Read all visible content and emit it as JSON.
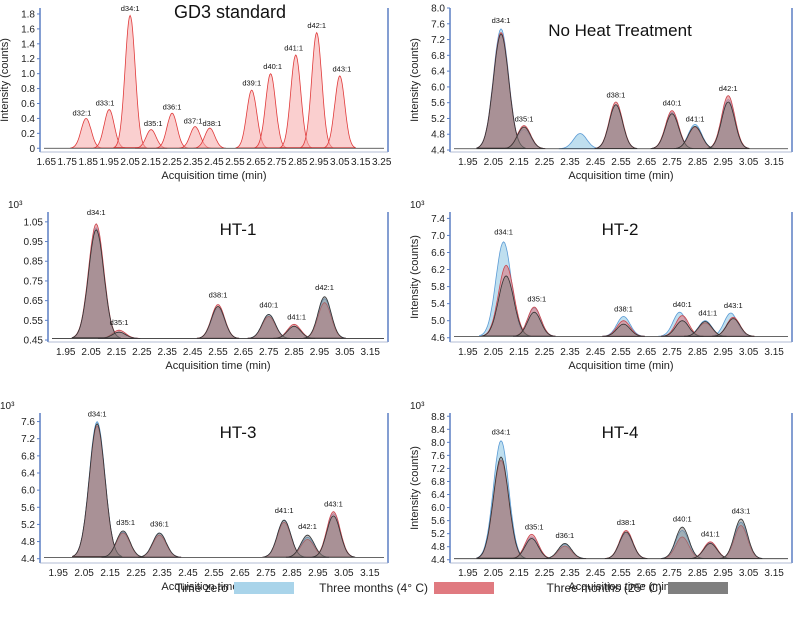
{
  "colors": {
    "time_zero": "#a9d4ea",
    "time_zero_line": "#5b9bd5",
    "four_c": "#e07a80",
    "four_c_line": "#c9474f",
    "twentyfive_c": "#7f7f7f",
    "twentyfive_c_line": "#333333",
    "gd3_fill": "#f6a7a7",
    "gd3_line": "#e03a3a",
    "axis": "#5b7fc4"
  },
  "legend": {
    "time_zero": "Time zero",
    "four_c": "Three months (4° C)",
    "twentyfive_c": "Three months (25° C)"
  },
  "chart_data": [
    {
      "id": "gd3",
      "type": "area",
      "title": "GD3 standard",
      "xlabel": "Acquisition time (min)",
      "ylabel": "Intensity (counts)",
      "exponent": "",
      "xlim": [
        1.62,
        3.28
      ],
      "ylim": [
        -0.05,
        1.88
      ],
      "xticks": [
        "1.65",
        "1.75",
        "1.85",
        "1.95",
        "2.05",
        "2.15",
        "2.25",
        "2.35",
        "2.45",
        "2.55",
        "2.65",
        "2.75",
        "2.85",
        "2.95",
        "3.05",
        "3.15",
        "3.25"
      ],
      "yticks": [
        "0",
        "0.2",
        "0.4",
        "0.6",
        "0.8",
        "1.0",
        "1.2",
        "1.4",
        "1.6",
        "1.8"
      ],
      "series": [
        {
          "name": "GD3 standard",
          "color_key": "gd3",
          "peaks": [
            [
              1.84,
              0.4
            ],
            [
              1.95,
              0.52
            ],
            [
              2.05,
              1.78
            ],
            [
              2.15,
              0.25
            ],
            [
              2.25,
              0.47
            ],
            [
              2.36,
              0.29
            ],
            [
              2.43,
              0.27
            ],
            [
              2.63,
              0.78
            ],
            [
              2.72,
              1.0
            ],
            [
              2.84,
              1.25
            ],
            [
              2.94,
              1.55
            ],
            [
              3.05,
              0.97
            ]
          ]
        }
      ],
      "labels": [
        [
          "d32:1",
          1.82,
          0.4
        ],
        [
          "d33:1",
          1.93,
          0.53
        ],
        [
          "d34:1",
          2.05,
          1.8
        ],
        [
          "d35:1",
          2.16,
          0.26
        ],
        [
          "d36:1",
          2.25,
          0.48
        ],
        [
          "d37:1",
          2.35,
          0.29
        ],
        [
          "d38:1",
          2.44,
          0.26
        ],
        [
          "d39:1",
          2.63,
          0.8
        ],
        [
          "d40:1",
          2.73,
          1.02
        ],
        [
          "d41:1",
          2.83,
          1.27
        ],
        [
          "d42:1",
          2.94,
          1.57
        ],
        [
          "d43:1",
          3.06,
          0.99
        ]
      ]
    },
    {
      "id": "nht",
      "type": "area",
      "title": "No Heat Treatment",
      "xlabel": "Acquisition time (min)",
      "ylabel": "Intensity (counts)",
      "exponent": "",
      "xlim": [
        1.88,
        3.22
      ],
      "ylim": [
        4.35,
        8.0
      ],
      "xticks": [
        "1.95",
        "2.05",
        "2.15",
        "2.25",
        "2.35",
        "2.45",
        "2.55",
        "2.65",
        "2.75",
        "2.85",
        "2.95",
        "3.05",
        "3.15"
      ],
      "yticks": [
        "4.4",
        "4.8",
        "5.2",
        "5.6",
        "6.0",
        "6.4",
        "6.8",
        "7.2",
        "7.6",
        "8.0"
      ],
      "series": [
        {
          "name": "Time zero",
          "color_key": "time_zero",
          "peaks": [
            [
              2.08,
              7.47
            ],
            [
              2.17,
              4.92
            ],
            [
              2.39,
              4.82
            ],
            [
              2.53,
              5.55
            ],
            [
              2.75,
              5.35
            ],
            [
              2.84,
              5.05
            ],
            [
              2.97,
              5.68
            ]
          ]
        },
        {
          "name": "Three months (4° C)",
          "color_key": "four_c",
          "peaks": [
            [
              2.08,
              7.38
            ],
            [
              2.17,
              5.02
            ],
            [
              2.53,
              5.62
            ],
            [
              2.75,
              5.4
            ],
            [
              2.84,
              4.98
            ],
            [
              2.97,
              5.78
            ]
          ]
        },
        {
          "name": "Three months (25° C)",
          "color_key": "twentyfive_c",
          "peaks": [
            [
              2.08,
              7.34
            ],
            [
              2.17,
              4.98
            ],
            [
              2.53,
              5.55
            ],
            [
              2.75,
              5.32
            ],
            [
              2.84,
              5.0
            ],
            [
              2.97,
              5.62
            ]
          ]
        }
      ],
      "labels": [
        [
          "d34:1",
          2.08,
          7.55
        ],
        [
          "d35:1",
          2.17,
          5.05
        ],
        [
          "d38:1",
          2.53,
          5.65
        ],
        [
          "d40:1",
          2.75,
          5.45
        ],
        [
          "d41:1",
          2.84,
          5.05
        ],
        [
          "d42:1",
          2.97,
          5.82
        ]
      ]
    },
    {
      "id": "ht1",
      "type": "area",
      "title": "HT-1",
      "xlabel": "Acquisition time (min)",
      "ylabel": "",
      "exponent": "10³",
      "xlim": [
        1.88,
        3.22
      ],
      "ylim": [
        0.44,
        1.1
      ],
      "xticks": [
        "1.95",
        "2.05",
        "2.15",
        "2.25",
        "2.35",
        "2.45",
        "2.55",
        "2.65",
        "2.75",
        "2.85",
        "2.95",
        "3.05",
        "3.15"
      ],
      "yticks": [
        "0.45",
        "0.55",
        "0.65",
        "0.75",
        "0.85",
        "0.95",
        "1.05"
      ],
      "series": [
        {
          "name": "Time zero",
          "color_key": "time_zero",
          "peaks": [
            [
              2.07,
              1.02
            ],
            [
              2.16,
              0.49
            ],
            [
              2.55,
              0.61
            ],
            [
              2.75,
              0.58
            ],
            [
              2.85,
              0.52
            ],
            [
              2.97,
              0.66
            ]
          ]
        },
        {
          "name": "Three months (4° C)",
          "color_key": "four_c",
          "peaks": [
            [
              2.07,
              1.04
            ],
            [
              2.16,
              0.5
            ],
            [
              2.55,
              0.63
            ],
            [
              2.75,
              0.57
            ],
            [
              2.85,
              0.53
            ],
            [
              2.97,
              0.64
            ]
          ]
        },
        {
          "name": "Three months (25° C)",
          "color_key": "twentyfive_c",
          "peaks": [
            [
              2.07,
              1.01
            ],
            [
              2.16,
              0.49
            ],
            [
              2.55,
              0.62
            ],
            [
              2.75,
              0.58
            ],
            [
              2.85,
              0.52
            ],
            [
              2.97,
              0.67
            ]
          ]
        }
      ],
      "labels": [
        [
          "d34:1",
          2.07,
          1.07
        ],
        [
          "d35:1",
          2.16,
          0.51
        ],
        [
          "d38:1",
          2.55,
          0.65
        ],
        [
          "d40:1",
          2.75,
          0.6
        ],
        [
          "d41:1",
          2.86,
          0.54
        ],
        [
          "d42:1",
          2.97,
          0.69
        ]
      ]
    },
    {
      "id": "ht2",
      "type": "area",
      "title": "HT-2",
      "xlabel": "Acquisition time (min)",
      "ylabel": "Intensity (counts)",
      "exponent": "10³",
      "xlim": [
        1.88,
        3.22
      ],
      "ylim": [
        4.5,
        7.55
      ],
      "xticks": [
        "1.95",
        "2.05",
        "2.15",
        "2.25",
        "2.35",
        "2.45",
        "2.55",
        "2.65",
        "2.75",
        "2.85",
        "2.95",
        "3.05",
        "3.15"
      ],
      "yticks": [
        "4.6",
        "5.0",
        "5.4",
        "5.8",
        "6.2",
        "6.6",
        "7.0",
        "7.4"
      ],
      "series": [
        {
          "name": "Time zero",
          "color_key": "time_zero",
          "peaks": [
            [
              2.09,
              6.85
            ],
            [
              2.21,
              5.3
            ],
            [
              2.56,
              5.1
            ],
            [
              2.78,
              5.2
            ],
            [
              2.88,
              5.0
            ],
            [
              2.98,
              5.18
            ]
          ]
        },
        {
          "name": "Three months (4° C)",
          "color_key": "four_c",
          "peaks": [
            [
              2.1,
              6.3
            ],
            [
              2.21,
              5.32
            ],
            [
              2.56,
              5.0
            ],
            [
              2.79,
              5.12
            ],
            [
              2.88,
              4.95
            ],
            [
              2.99,
              5.08
            ]
          ]
        },
        {
          "name": "Three months (25° C)",
          "color_key": "twentyfive_c",
          "peaks": [
            [
              2.1,
              6.05
            ],
            [
              2.21,
              5.2
            ],
            [
              2.56,
              4.92
            ],
            [
              2.79,
              5.0
            ],
            [
              2.88,
              4.98
            ],
            [
              2.99,
              5.05
            ]
          ]
        }
      ],
      "labels": [
        [
          "d34:1",
          2.09,
          6.95
        ],
        [
          "d35:1",
          2.22,
          5.38
        ],
        [
          "d38:1",
          2.56,
          5.15
        ],
        [
          "d40:1",
          2.79,
          5.25
        ],
        [
          "d41:1",
          2.89,
          5.05
        ],
        [
          "d43:1",
          2.99,
          5.23
        ]
      ]
    },
    {
      "id": "ht3",
      "type": "area",
      "title": "HT-3",
      "xlabel": "Acquisition time (min)",
      "ylabel": "",
      "exponent": "10³",
      "xlim": [
        1.88,
        3.22
      ],
      "ylim": [
        4.3,
        7.8
      ],
      "xticks": [
        "1.95",
        "2.05",
        "2.15",
        "2.25",
        "2.35",
        "2.45",
        "2.55",
        "2.65",
        "2.75",
        "2.85",
        "2.95",
        "3.05",
        "3.15"
      ],
      "yticks": [
        "4.4",
        "4.8",
        "5.2",
        "5.6",
        "6.0",
        "6.4",
        "6.8",
        "7.2",
        "7.6"
      ],
      "series": [
        {
          "name": "Time zero",
          "color_key": "time_zero",
          "peaks": [
            [
              2.1,
              7.6
            ],
            [
              2.2,
              5.02
            ],
            [
              2.34,
              5.0
            ],
            [
              2.82,
              5.3
            ],
            [
              2.91,
              4.9
            ],
            [
              3.01,
              5.45
            ]
          ]
        },
        {
          "name": "Three months (4° C)",
          "color_key": "four_c",
          "peaks": [
            [
              2.1,
              7.5
            ],
            [
              2.2,
              5.0
            ],
            [
              2.34,
              4.95
            ],
            [
              2.82,
              5.25
            ],
            [
              2.91,
              4.85
            ],
            [
              3.01,
              5.5
            ]
          ]
        },
        {
          "name": "Three months (25° C)",
          "color_key": "twentyfive_c",
          "peaks": [
            [
              2.1,
              7.55
            ],
            [
              2.2,
              5.05
            ],
            [
              2.34,
              5.0
            ],
            [
              2.82,
              5.3
            ],
            [
              2.91,
              4.95
            ],
            [
              3.01,
              5.4
            ]
          ]
        }
      ],
      "labels": [
        [
          "d34:1",
          2.1,
          7.65
        ],
        [
          "d35:1",
          2.21,
          5.12
        ],
        [
          "d36:1",
          2.34,
          5.08
        ],
        [
          "d41:1",
          2.82,
          5.4
        ],
        [
          "d42:1",
          2.91,
          5.02
        ],
        [
          "d43:1",
          3.01,
          5.55
        ]
      ]
    },
    {
      "id": "ht4",
      "type": "area",
      "title": "HT-4",
      "xlabel": "Acquisition time (min)",
      "ylabel": "Intensity (counts)",
      "exponent": "10³",
      "xlim": [
        1.88,
        3.22
      ],
      "ylim": [
        4.3,
        8.9
      ],
      "xticks": [
        "1.95",
        "2.05",
        "2.15",
        "2.25",
        "2.35",
        "2.45",
        "2.55",
        "2.65",
        "2.75",
        "2.85",
        "2.95",
        "3.05",
        "3.15"
      ],
      "yticks": [
        "4.4",
        "4.8",
        "5.2",
        "5.6",
        "6.0",
        "6.4",
        "6.8",
        "7.2",
        "7.6",
        "8.0",
        "8.4",
        "8.8"
      ],
      "series": [
        {
          "name": "Time zero",
          "color_key": "time_zero",
          "peaks": [
            [
              2.08,
              8.05
            ],
            [
              2.2,
              5.1
            ],
            [
              2.33,
              4.88
            ],
            [
              2.57,
              5.2
            ],
            [
              2.79,
              5.3
            ],
            [
              2.9,
              4.92
            ],
            [
              3.02,
              5.55
            ]
          ]
        },
        {
          "name": "Three months (4° C)",
          "color_key": "four_c",
          "peaks": [
            [
              2.08,
              7.45
            ],
            [
              2.2,
              5.18
            ],
            [
              2.33,
              4.82
            ],
            [
              2.57,
              5.3
            ],
            [
              2.79,
              5.1
            ],
            [
              2.9,
              4.95
            ],
            [
              3.02,
              5.45
            ]
          ]
        },
        {
          "name": "Three months (25° C)",
          "color_key": "twentyfive_c",
          "peaks": [
            [
              2.08,
              7.55
            ],
            [
              2.2,
              5.05
            ],
            [
              2.33,
              4.9
            ],
            [
              2.57,
              5.25
            ],
            [
              2.79,
              5.4
            ],
            [
              2.9,
              4.9
            ],
            [
              3.02,
              5.65
            ]
          ]
        }
      ],
      "labels": [
        [
          "d34:1",
          2.08,
          8.15
        ],
        [
          "d35:1",
          2.21,
          5.23
        ],
        [
          "d36:1",
          2.33,
          4.98
        ],
        [
          "d38:1",
          2.57,
          5.38
        ],
        [
          "d40:1",
          2.79,
          5.48
        ],
        [
          "d41:1",
          2.9,
          5.02
        ],
        [
          "d43:1",
          3.02,
          5.72
        ]
      ]
    }
  ]
}
